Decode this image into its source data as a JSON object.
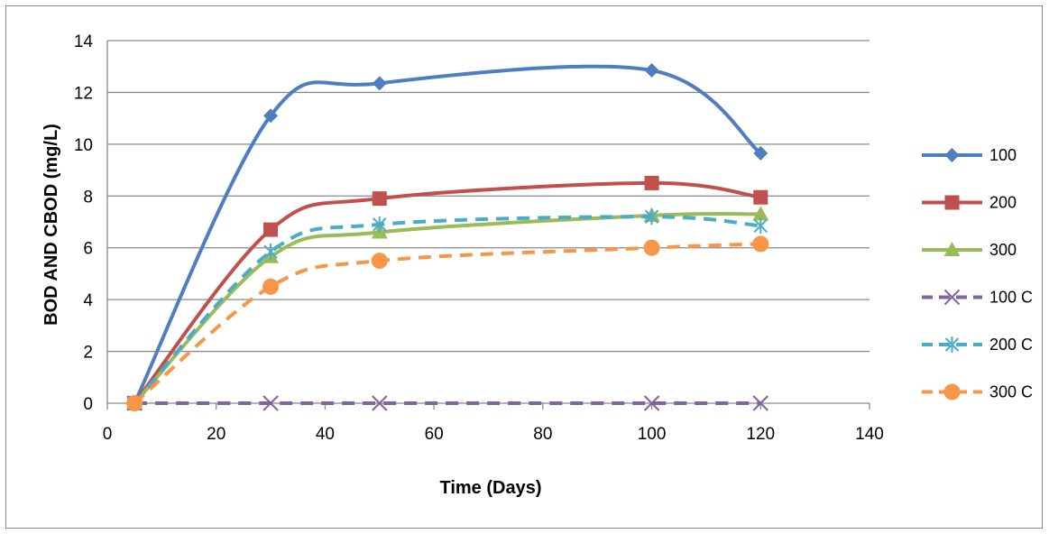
{
  "chart_data": {
    "type": "line",
    "xlabel": "Time (Days)",
    "ylabel": "BOD AND CBOD  (mg/L)",
    "xlim": [
      0,
      140
    ],
    "ylim": [
      0,
      14
    ],
    "xticks": [
      0,
      20,
      40,
      60,
      80,
      100,
      120,
      140
    ],
    "yticks": [
      0,
      2,
      4,
      6,
      8,
      10,
      12,
      14
    ],
    "grid": "horizontal",
    "legend_position": "right",
    "x": [
      5,
      30,
      50,
      100,
      120
    ],
    "series": [
      {
        "name": "100",
        "values": [
          0,
          11.1,
          12.35,
          12.85,
          9.65
        ],
        "color": "#4f7ec0",
        "dash": "solid",
        "marker": "diamond"
      },
      {
        "name": "200",
        "values": [
          0,
          6.7,
          7.9,
          8.5,
          7.95
        ],
        "color": "#c0504d",
        "dash": "solid",
        "marker": "square"
      },
      {
        "name": "300",
        "values": [
          0,
          5.65,
          6.6,
          7.25,
          7.3
        ],
        "color": "#9bbb59",
        "dash": "solid",
        "marker": "triangle"
      },
      {
        "name": "100 C",
        "values": [
          0,
          0,
          0,
          0,
          0
        ],
        "color": "#8064a2",
        "dash": "dashed",
        "marker": "x"
      },
      {
        "name": "200 C",
        "values": [
          0,
          5.85,
          6.9,
          7.2,
          6.85
        ],
        "color": "#4bacc6",
        "dash": "dashed",
        "marker": "star"
      },
      {
        "name": "300 C",
        "values": [
          0,
          4.5,
          5.5,
          6.0,
          6.15
        ],
        "color": "#f79646",
        "dash": "dashed",
        "marker": "circle"
      }
    ]
  }
}
